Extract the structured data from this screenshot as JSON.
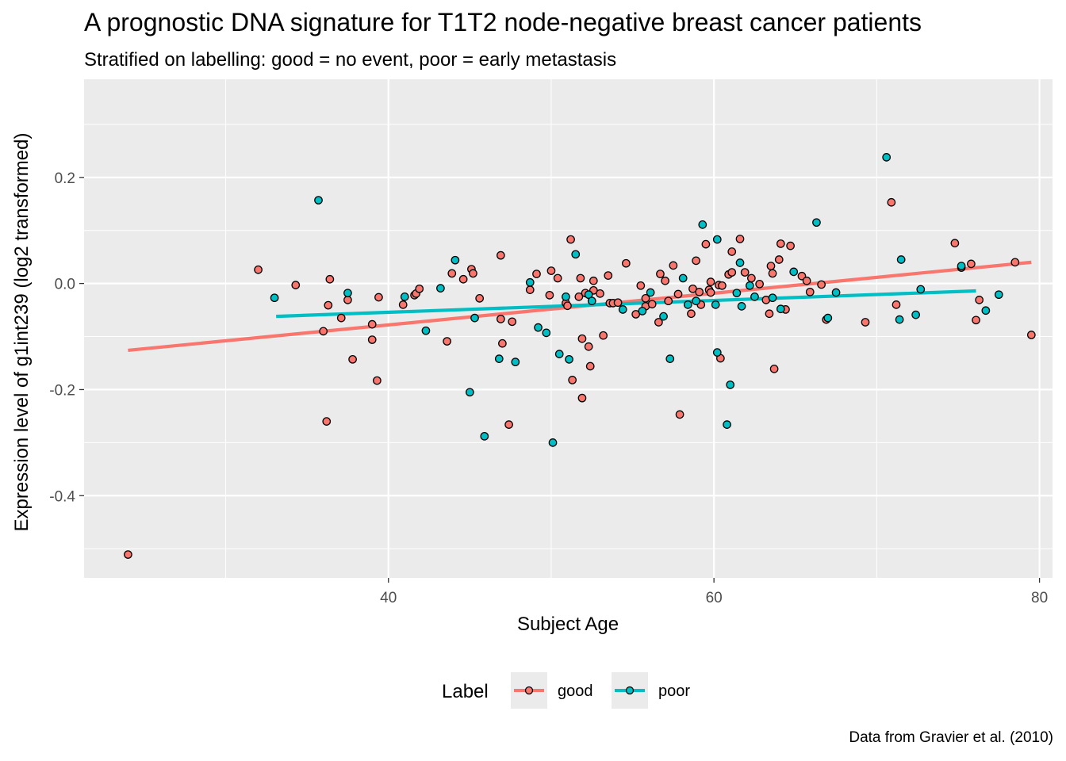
{
  "chart_data": {
    "type": "scatter",
    "title": "A prognostic DNA signature for T1T2 node-negative breast cancer patients",
    "subtitle": "Stratified on labelling: good = no event, poor = early metastasis",
    "caption": "Data from Gravier et al. (2010)",
    "xlabel": "Subject Age",
    "ylabel": "Expression level of g1int239 (log2 transformed)",
    "xlim": [
      21.3,
      80.8
    ],
    "ylim": [
      -0.555,
      0.385
    ],
    "x_ticks": [
      40,
      60,
      80
    ],
    "x_tick_labels": [
      "40",
      "60",
      "80"
    ],
    "y_ticks": [
      -0.4,
      -0.2,
      0.0,
      0.2
    ],
    "y_tick_labels": [
      "-0.4",
      "-0.2",
      "0.0",
      "0.2"
    ],
    "grid": true,
    "legend": {
      "title": "Label",
      "position": "bottom",
      "entries": [
        "good",
        "poor"
      ]
    },
    "colors": {
      "good": "#F8766D",
      "poor": "#00BFC4",
      "panel": "#EBEBEB",
      "grid": "#FFFFFF"
    },
    "series": [
      {
        "name": "good",
        "color": "#F8766D",
        "trend": {
          "x": [
            24.0,
            79.5
          ],
          "y": [
            -0.126,
            0.04
          ]
        },
        "points": [
          [
            24.0,
            -0.511
          ],
          [
            32.0,
            0.026
          ],
          [
            34.3,
            -0.003
          ],
          [
            36.0,
            -0.09
          ],
          [
            36.2,
            -0.26
          ],
          [
            36.3,
            -0.041
          ],
          [
            36.4,
            0.008
          ],
          [
            37.1,
            -0.065
          ],
          [
            37.5,
            -0.031
          ],
          [
            37.8,
            -0.143
          ],
          [
            39.0,
            -0.077
          ],
          [
            39.0,
            -0.106
          ],
          [
            39.3,
            -0.183
          ],
          [
            39.4,
            -0.026
          ],
          [
            40.9,
            -0.04
          ],
          [
            41.6,
            -0.022
          ],
          [
            41.7,
            -0.019
          ],
          [
            41.9,
            -0.01
          ],
          [
            43.6,
            -0.109
          ],
          [
            43.9,
            0.019
          ],
          [
            44.6,
            0.008
          ],
          [
            45.1,
            0.027
          ],
          [
            45.2,
            0.019
          ],
          [
            45.6,
            -0.028
          ],
          [
            46.9,
            0.053
          ],
          [
            46.9,
            -0.067
          ],
          [
            47.0,
            -0.113
          ],
          [
            47.4,
            -0.266
          ],
          [
            47.6,
            -0.072
          ],
          [
            48.7,
            -0.012
          ],
          [
            49.1,
            0.018
          ],
          [
            49.9,
            -0.022
          ],
          [
            50.0,
            0.024
          ],
          [
            50.4,
            0.01
          ],
          [
            50.9,
            -0.037
          ],
          [
            51.0,
            -0.042
          ],
          [
            51.2,
            0.083
          ],
          [
            51.3,
            -0.182
          ],
          [
            51.7,
            -0.025
          ],
          [
            51.8,
            0.01
          ],
          [
            51.9,
            -0.104
          ],
          [
            51.9,
            -0.216
          ],
          [
            52.1,
            -0.018
          ],
          [
            52.3,
            -0.119
          ],
          [
            52.4,
            -0.156
          ],
          [
            52.6,
            -0.013
          ],
          [
            52.6,
            0.005
          ],
          [
            53.0,
            -0.019
          ],
          [
            53.2,
            -0.098
          ],
          [
            53.5,
            0.015
          ],
          [
            53.6,
            -0.037
          ],
          [
            53.8,
            -0.037
          ],
          [
            54.1,
            -0.036
          ],
          [
            54.6,
            0.038
          ],
          [
            55.2,
            -0.058
          ],
          [
            55.5,
            -0.004
          ],
          [
            55.8,
            -0.043
          ],
          [
            55.8,
            -0.028
          ],
          [
            56.2,
            -0.039
          ],
          [
            56.6,
            -0.073
          ],
          [
            56.7,
            0.018
          ],
          [
            57.0,
            0.005
          ],
          [
            57.2,
            -0.033
          ],
          [
            57.5,
            0.034
          ],
          [
            57.8,
            -0.02
          ],
          [
            57.9,
            -0.247
          ],
          [
            58.6,
            -0.057
          ],
          [
            58.7,
            -0.01
          ],
          [
            58.9,
            0.043
          ],
          [
            59.1,
            -0.016
          ],
          [
            59.2,
            -0.04
          ],
          [
            59.5,
            0.074
          ],
          [
            59.7,
            -0.012
          ],
          [
            59.8,
            0.003
          ],
          [
            59.8,
            -0.017
          ],
          [
            60.3,
            -0.003
          ],
          [
            60.4,
            -0.141
          ],
          [
            60.5,
            -0.004
          ],
          [
            60.9,
            0.017
          ],
          [
            61.1,
            0.021
          ],
          [
            61.1,
            0.06
          ],
          [
            61.6,
            0.084
          ],
          [
            61.9,
            0.021
          ],
          [
            62.3,
            0.01
          ],
          [
            62.8,
            -0.001
          ],
          [
            63.2,
            -0.031
          ],
          [
            63.4,
            -0.057
          ],
          [
            63.5,
            0.033
          ],
          [
            63.6,
            0.019
          ],
          [
            63.7,
            -0.161
          ],
          [
            64.0,
            0.045
          ],
          [
            64.1,
            0.075
          ],
          [
            64.4,
            -0.049
          ],
          [
            64.7,
            0.071
          ],
          [
            65.4,
            0.014
          ],
          [
            65.7,
            0.005
          ],
          [
            65.9,
            -0.016
          ],
          [
            66.6,
            -0.002
          ],
          [
            66.9,
            -0.068
          ],
          [
            69.3,
            -0.073
          ],
          [
            70.9,
            0.153
          ],
          [
            71.2,
            -0.04
          ],
          [
            74.8,
            0.076
          ],
          [
            75.2,
            0.03
          ],
          [
            75.8,
            0.037
          ],
          [
            76.1,
            -0.069
          ],
          [
            76.3,
            -0.031
          ],
          [
            78.5,
            0.04
          ],
          [
            79.5,
            -0.097
          ]
        ]
      },
      {
        "name": "poor",
        "color": "#00BFC4",
        "trend": {
          "x": [
            33.1,
            76.1
          ],
          "y": [
            -0.062,
            -0.014
          ]
        },
        "points": [
          [
            33.0,
            -0.027
          ],
          [
            35.7,
            0.157
          ],
          [
            37.5,
            -0.018
          ],
          [
            41.0,
            -0.025
          ],
          [
            42.3,
            -0.089
          ],
          [
            43.2,
            -0.009
          ],
          [
            44.1,
            0.044
          ],
          [
            45.0,
            -0.205
          ],
          [
            45.3,
            -0.065
          ],
          [
            45.9,
            -0.288
          ],
          [
            46.8,
            -0.142
          ],
          [
            47.8,
            -0.148
          ],
          [
            48.7,
            0.002
          ],
          [
            49.2,
            -0.083
          ],
          [
            49.7,
            -0.093
          ],
          [
            50.1,
            -0.3
          ],
          [
            50.5,
            -0.133
          ],
          [
            50.9,
            -0.025
          ],
          [
            51.1,
            -0.143
          ],
          [
            51.5,
            0.055
          ],
          [
            52.3,
            -0.021
          ],
          [
            52.5,
            -0.033
          ],
          [
            54.4,
            -0.049
          ],
          [
            55.6,
            -0.052
          ],
          [
            56.1,
            -0.017
          ],
          [
            56.9,
            -0.062
          ],
          [
            57.3,
            -0.142
          ],
          [
            58.1,
            0.01
          ],
          [
            58.4,
            -0.04
          ],
          [
            58.9,
            -0.033
          ],
          [
            59.3,
            0.111
          ],
          [
            60.1,
            -0.04
          ],
          [
            60.2,
            -0.13
          ],
          [
            60.2,
            0.083
          ],
          [
            60.8,
            -0.266
          ],
          [
            61.0,
            -0.191
          ],
          [
            61.4,
            -0.018
          ],
          [
            61.6,
            0.039
          ],
          [
            61.7,
            -0.043
          ],
          [
            62.2,
            -0.004
          ],
          [
            62.5,
            -0.025
          ],
          [
            63.6,
            -0.027
          ],
          [
            64.1,
            -0.048
          ],
          [
            64.9,
            0.022
          ],
          [
            66.3,
            0.115
          ],
          [
            67.0,
            -0.065
          ],
          [
            67.5,
            -0.017
          ],
          [
            70.6,
            0.238
          ],
          [
            71.4,
            -0.068
          ],
          [
            71.5,
            0.045
          ],
          [
            72.4,
            -0.059
          ],
          [
            72.7,
            -0.011
          ],
          [
            75.2,
            0.033
          ],
          [
            76.7,
            -0.051
          ],
          [
            77.5,
            -0.021
          ]
        ]
      }
    ]
  }
}
